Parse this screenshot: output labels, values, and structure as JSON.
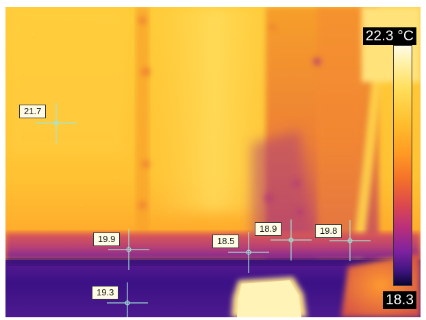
{
  "scale": {
    "max": "22.3 °C",
    "min": "18.3",
    "colors": [
      "#fffbea",
      "#ffde5a",
      "#ff9a23",
      "#de4a4c",
      "#7e22a0",
      "#0b0534"
    ]
  },
  "spots": [
    {
      "label": "21.7"
    },
    {
      "label": "19.9"
    },
    {
      "label": "19.3"
    },
    {
      "label": "18.5"
    },
    {
      "label": "18.9"
    },
    {
      "label": "19.8"
    }
  ],
  "marker_color": "#9fe8d8"
}
